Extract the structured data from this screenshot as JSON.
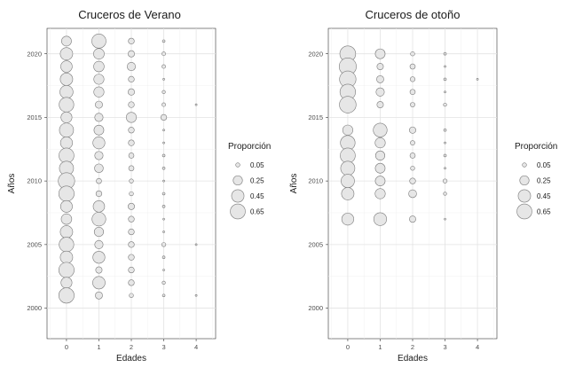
{
  "chart_data": [
    {
      "type": "scatter",
      "title": "Cruceros de Verano",
      "xlabel": "Edades",
      "ylabel": "Años",
      "xticks": [
        "0",
        "1",
        "2",
        "3",
        "4"
      ],
      "yticks": [
        "2000",
        "2005",
        "2010",
        "2015",
        "2020"
      ],
      "xlim": [
        -0.6,
        4.6
      ],
      "ylim": [
        1997.6,
        2022
      ],
      "grid": true,
      "legend": {
        "title": "Proporción",
        "entries": [
          {
            "label": "0.05",
            "value": 0.05
          },
          {
            "label": "0.25",
            "value": 0.25
          },
          {
            "label": "0.45",
            "value": 0.45
          },
          {
            "label": "0.65",
            "value": 0.65
          }
        ],
        "placement": "right"
      },
      "colors": {
        "fill": "#e6e6e6",
        "stroke": "#7a7a7a"
      },
      "points": [
        {
          "year": 2021,
          "values": [
            0.28,
            0.58,
            0.1,
            0.02
          ]
        },
        {
          "year": 2020,
          "values": [
            0.45,
            0.33,
            0.12,
            0.04
          ]
        },
        {
          "year": 2019,
          "values": [
            0.38,
            0.32,
            0.2,
            0.04
          ]
        },
        {
          "year": 2018,
          "values": [
            0.45,
            0.3,
            0.1,
            0.01
          ]
        },
        {
          "year": 2017,
          "values": [
            0.5,
            0.3,
            0.12,
            0.03
          ]
        },
        {
          "year": 2016,
          "values": [
            0.62,
            0.15,
            0.1,
            0.04,
            0.01
          ]
        },
        {
          "year": 2015,
          "values": [
            0.35,
            0.2,
            0.3,
            0.1
          ]
        },
        {
          "year": 2014,
          "values": [
            0.58,
            0.28,
            0.1,
            0.01
          ]
        },
        {
          "year": 2013,
          "values": [
            0.42,
            0.42,
            0.1,
            0.01
          ]
        },
        {
          "year": 2012,
          "values": [
            0.65,
            0.2,
            0.08,
            0.02
          ]
        },
        {
          "year": 2011,
          "values": [
            0.58,
            0.22,
            0.08,
            0.02
          ]
        },
        {
          "year": 2010,
          "values": [
            0.78,
            0.08,
            0.05,
            0.01
          ]
        },
        {
          "year": 2009,
          "values": [
            0.68,
            0.1,
            0.05,
            0.02
          ]
        },
        {
          "year": 2008,
          "values": [
            0.4,
            0.38,
            0.12,
            0.02
          ]
        },
        {
          "year": 2007,
          "values": [
            0.32,
            0.55,
            0.1,
            0.01
          ]
        },
        {
          "year": 2006,
          "values": [
            0.45,
            0.25,
            0.1,
            0.01
          ]
        },
        {
          "year": 2005,
          "values": [
            0.62,
            0.2,
            0.1,
            0.05,
            0.01
          ]
        },
        {
          "year": 2004,
          "values": [
            0.45,
            0.42,
            0.1,
            0.02
          ]
        },
        {
          "year": 2003,
          "values": [
            0.68,
            0.12,
            0.1,
            0.01
          ]
        },
        {
          "year": 2002,
          "values": [
            0.35,
            0.45,
            0.1,
            0.03
          ]
        },
        {
          "year": 2001,
          "values": [
            0.68,
            0.15,
            0.05,
            0.02,
            0.01
          ]
        }
      ]
    },
    {
      "type": "scatter",
      "title": "Cruceros de otoño",
      "xlabel": "Edades",
      "ylabel": "Años",
      "xticks": [
        "0",
        "1",
        "2",
        "3",
        "4"
      ],
      "yticks": [
        "2000",
        "2005",
        "2010",
        "2015",
        "2020"
      ],
      "xlim": [
        -0.6,
        4.6
      ],
      "ylim": [
        1997.6,
        2022
      ],
      "grid": true,
      "legend": {
        "title": "Proporción",
        "entries": [
          {
            "label": "0.05",
            "value": 0.05
          },
          {
            "label": "0.25",
            "value": 0.25
          },
          {
            "label": "0.45",
            "value": 0.45
          },
          {
            "label": "0.65",
            "value": 0.65
          }
        ],
        "placement": "right"
      },
      "colors": {
        "fill": "#e6e6e6",
        "stroke": "#7a7a7a"
      },
      "points": [
        {
          "year": 2020,
          "values": [
            0.72,
            0.28,
            0.05,
            0.02
          ]
        },
        {
          "year": 2019,
          "values": [
            0.85,
            0.12,
            0.08,
            0.01
          ]
        },
        {
          "year": 2018,
          "values": [
            0.78,
            0.15,
            0.07,
            0.02,
            0.01
          ]
        },
        {
          "year": 2017,
          "values": [
            0.7,
            0.2,
            0.08,
            0.01
          ]
        },
        {
          "year": 2016,
          "values": [
            0.8,
            0.12,
            0.06,
            0.03
          ]
        },
        {
          "year": 2014,
          "values": [
            0.3,
            0.55,
            0.12,
            0.02
          ]
        },
        {
          "year": 2013,
          "values": [
            0.62,
            0.3,
            0.06,
            0.01
          ]
        },
        {
          "year": 2012,
          "values": [
            0.65,
            0.25,
            0.08,
            0.02
          ]
        },
        {
          "year": 2011,
          "values": [
            0.58,
            0.28,
            0.05,
            0.01
          ]
        },
        {
          "year": 2010,
          "values": [
            0.52,
            0.28,
            0.1,
            0.05
          ]
        },
        {
          "year": 2009,
          "values": [
            0.45,
            0.3,
            0.18,
            0.03
          ]
        },
        {
          "year": 2007,
          "values": [
            0.42,
            0.48,
            0.12,
            0.01
          ]
        }
      ]
    }
  ]
}
